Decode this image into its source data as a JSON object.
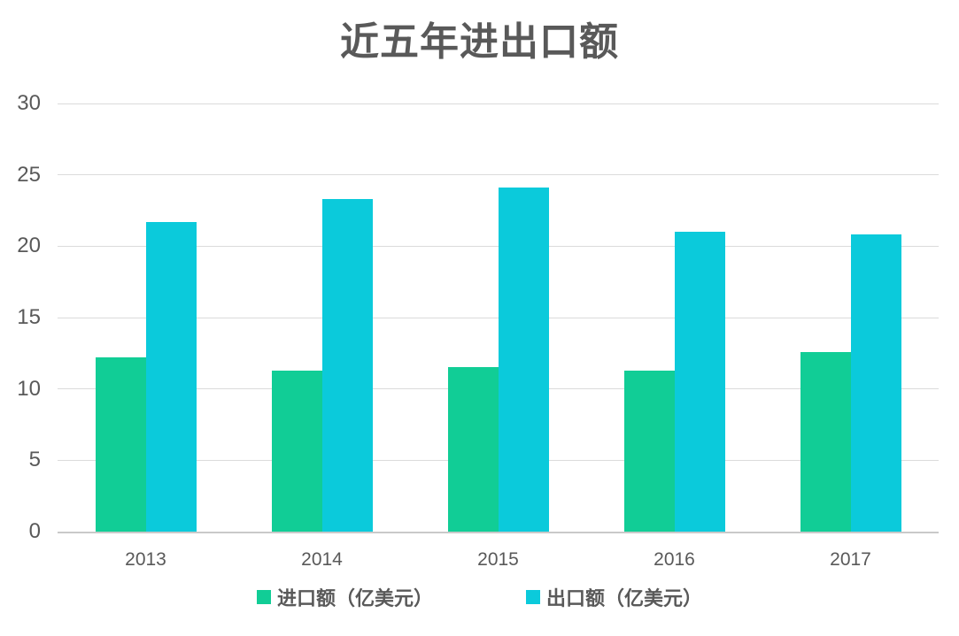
{
  "title": "近五年进出口额",
  "colors": {
    "import_series": "#11cd96",
    "export_series": "#0bcadb",
    "text": "#595959",
    "gridline": "#dbdbdb",
    "axis_line": "#c9c9c9",
    "background": "#ffffff"
  },
  "chart_data": {
    "type": "bar",
    "title": "近五年进出口额",
    "categories": [
      "2013",
      "2014",
      "2015",
      "2016",
      "2017"
    ],
    "series": [
      {
        "key": "import",
        "name": "进口额（亿美元）",
        "color": "#11cd96",
        "values": [
          12.2,
          11.3,
          11.5,
          11.3,
          12.6
        ]
      },
      {
        "key": "export",
        "name": "出口额（亿美元）",
        "color": "#0bcadb",
        "values": [
          21.7,
          23.3,
          24.1,
          21.0,
          20.8
        ]
      }
    ],
    "xlabel": "",
    "ylabel": "",
    "ylim": [
      0,
      30
    ],
    "yticks": [
      0,
      5,
      10,
      15,
      20,
      25,
      30
    ],
    "grid": true,
    "legend_position": "bottom"
  }
}
